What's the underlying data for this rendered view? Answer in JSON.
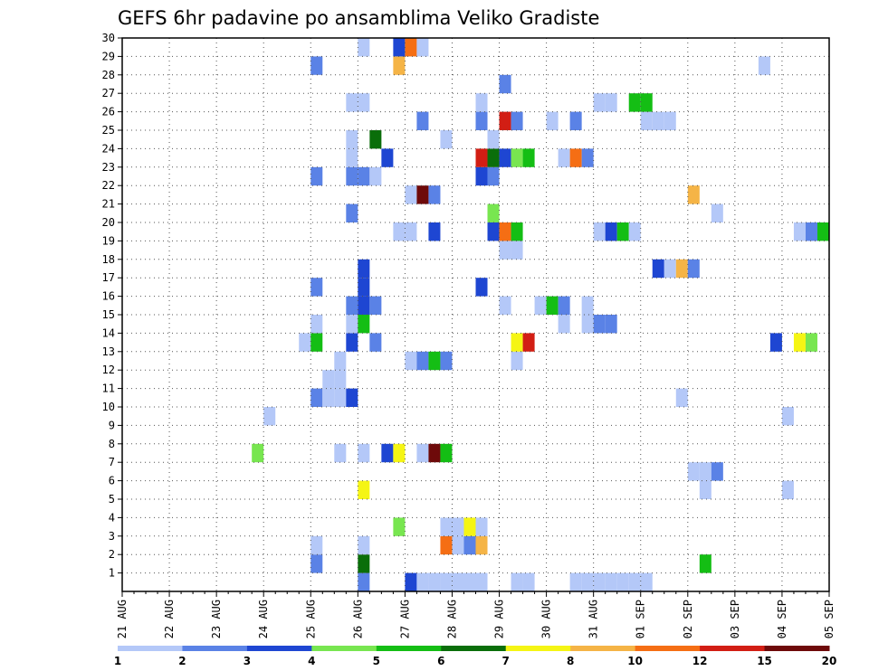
{
  "chart_data": {
    "type": "heatmap",
    "title": "GEFS 6hr padavine po ansamblima Veliko Gradiste",
    "xlabel": "",
    "ylabel": "",
    "x_tick_labels": [
      "21 AUG",
      "22 AUG",
      "23 AUG",
      "24 AUG",
      "25 AUG",
      "26 AUG",
      "27 AUG",
      "28 AUG",
      "29 AUG",
      "30 AUG",
      "31 AUG",
      "01 SEP",
      "02 SEP",
      "03 SEP",
      "04 SEP",
      "05 SEP"
    ],
    "y_tick_labels": [
      "1",
      "2",
      "3",
      "4",
      "5",
      "6",
      "7",
      "8",
      "9",
      "10",
      "11",
      "12",
      "13",
      "14",
      "15",
      "16",
      "17",
      "18",
      "19",
      "20",
      "21",
      "22",
      "23",
      "24",
      "25",
      "26",
      "27",
      "28",
      "29",
      "30"
    ],
    "ylim": [
      0,
      30
    ],
    "steps_per_day": 4,
    "grid": true,
    "colorbar": {
      "placement": "bottom",
      "labels": [
        "1",
        "2",
        "3",
        "4",
        "5",
        "6",
        "7",
        "8",
        "10",
        "12",
        "15",
        "20"
      ],
      "colors": [
        "#b4c8f8",
        "#5a82e6",
        "#1e46d2",
        "#78e650",
        "#14be14",
        "#0a6e0a",
        "#f5f514",
        "#f5b446",
        "#f56e14",
        "#d21e14",
        "#6e0a0a"
      ]
    },
    "cells_format": "[step, member, colorIndex]",
    "cells": [
      [
        20,
        0,
        1
      ],
      [
        24,
        0,
        2
      ],
      [
        25,
        0,
        0
      ],
      [
        26,
        0,
        0
      ],
      [
        27,
        0,
        0
      ],
      [
        28,
        0,
        0
      ],
      [
        29,
        0,
        0
      ],
      [
        30,
        0,
        0
      ],
      [
        33,
        0,
        0
      ],
      [
        34,
        0,
        0
      ],
      [
        38,
        0,
        0
      ],
      [
        39,
        0,
        0
      ],
      [
        40,
        0,
        0
      ],
      [
        41,
        0,
        0
      ],
      [
        42,
        0,
        0
      ],
      [
        43,
        0,
        0
      ],
      [
        44,
        0,
        0
      ],
      [
        16,
        1,
        1
      ],
      [
        20,
        1,
        5
      ],
      [
        49,
        1,
        4
      ],
      [
        16,
        2,
        0
      ],
      [
        20,
        2,
        0
      ],
      [
        27,
        2,
        8
      ],
      [
        28,
        2,
        0
      ],
      [
        29,
        2,
        1
      ],
      [
        30,
        2,
        7
      ],
      [
        23,
        3,
        3
      ],
      [
        27,
        3,
        0
      ],
      [
        28,
        3,
        0
      ],
      [
        29,
        3,
        6
      ],
      [
        30,
        3,
        0
      ],
      [
        20,
        5,
        6
      ],
      [
        49,
        5,
        0
      ],
      [
        56,
        5,
        0
      ],
      [
        48,
        6,
        0
      ],
      [
        49,
        6,
        0
      ],
      [
        50,
        6,
        1
      ],
      [
        11,
        7,
        3
      ],
      [
        18,
        7,
        0
      ],
      [
        20,
        7,
        0
      ],
      [
        22,
        7,
        2
      ],
      [
        23,
        7,
        6
      ],
      [
        25,
        7,
        0
      ],
      [
        26,
        7,
        10
      ],
      [
        27,
        7,
        4
      ],
      [
        12,
        9,
        0
      ],
      [
        56,
        9,
        0
      ],
      [
        16,
        10,
        1
      ],
      [
        17,
        10,
        0
      ],
      [
        18,
        10,
        0
      ],
      [
        19,
        10,
        2
      ],
      [
        47,
        10,
        0
      ],
      [
        17,
        11,
        0
      ],
      [
        18,
        11,
        0
      ],
      [
        18,
        12,
        0
      ],
      [
        24,
        12,
        0
      ],
      [
        25,
        12,
        1
      ],
      [
        26,
        12,
        4
      ],
      [
        27,
        12,
        1
      ],
      [
        33,
        12,
        0
      ],
      [
        15,
        13,
        0
      ],
      [
        16,
        13,
        4
      ],
      [
        19,
        13,
        2
      ],
      [
        21,
        13,
        1
      ],
      [
        33,
        13,
        6
      ],
      [
        34,
        13,
        9
      ],
      [
        55,
        13,
        2
      ],
      [
        57,
        13,
        6
      ],
      [
        58,
        13,
        3
      ],
      [
        16,
        14,
        0
      ],
      [
        19,
        14,
        0
      ],
      [
        20,
        14,
        4
      ],
      [
        37,
        14,
        0
      ],
      [
        39,
        14,
        0
      ],
      [
        40,
        14,
        1
      ],
      [
        41,
        14,
        1
      ],
      [
        19,
        15,
        1
      ],
      [
        20,
        15,
        2
      ],
      [
        21,
        15,
        1
      ],
      [
        32,
        15,
        0
      ],
      [
        35,
        15,
        0
      ],
      [
        36,
        15,
        4
      ],
      [
        37,
        15,
        1
      ],
      [
        39,
        15,
        0
      ],
      [
        16,
        16,
        1
      ],
      [
        20,
        16,
        2
      ],
      [
        30,
        16,
        2
      ],
      [
        20,
        17,
        2
      ],
      [
        45,
        17,
        2
      ],
      [
        46,
        17,
        0
      ],
      [
        47,
        17,
        7
      ],
      [
        48,
        17,
        1
      ],
      [
        32,
        18,
        0
      ],
      [
        33,
        18,
        0
      ],
      [
        23,
        19,
        0
      ],
      [
        24,
        19,
        0
      ],
      [
        26,
        19,
        2
      ],
      [
        31,
        19,
        2
      ],
      [
        32,
        19,
        8
      ],
      [
        33,
        19,
        4
      ],
      [
        40,
        19,
        0
      ],
      [
        41,
        19,
        2
      ],
      [
        42,
        19,
        4
      ],
      [
        43,
        19,
        0
      ],
      [
        57,
        19,
        0
      ],
      [
        58,
        19,
        1
      ],
      [
        59,
        19,
        4
      ],
      [
        19,
        20,
        1
      ],
      [
        31,
        20,
        3
      ],
      [
        50,
        20,
        0
      ],
      [
        24,
        21,
        0
      ],
      [
        25,
        21,
        10
      ],
      [
        26,
        21,
        1
      ],
      [
        48,
        21,
        7
      ],
      [
        16,
        22,
        1
      ],
      [
        19,
        22,
        1
      ],
      [
        20,
        22,
        1
      ],
      [
        21,
        22,
        0
      ],
      [
        30,
        22,
        2
      ],
      [
        31,
        22,
        1
      ],
      [
        19,
        23,
        0
      ],
      [
        22,
        23,
        2
      ],
      [
        30,
        23,
        9
      ],
      [
        31,
        23,
        5
      ],
      [
        32,
        23,
        2
      ],
      [
        33,
        23,
        3
      ],
      [
        34,
        23,
        4
      ],
      [
        37,
        23,
        0
      ],
      [
        38,
        23,
        8
      ],
      [
        39,
        23,
        1
      ],
      [
        19,
        24,
        0
      ],
      [
        21,
        24,
        5
      ],
      [
        27,
        24,
        0
      ],
      [
        31,
        24,
        0
      ],
      [
        25,
        25,
        1
      ],
      [
        30,
        25,
        1
      ],
      [
        32,
        25,
        9
      ],
      [
        33,
        25,
        1
      ],
      [
        36,
        25,
        0
      ],
      [
        38,
        25,
        1
      ],
      [
        44,
        25,
        0
      ],
      [
        45,
        25,
        0
      ],
      [
        46,
        25,
        0
      ],
      [
        19,
        26,
        0
      ],
      [
        20,
        26,
        0
      ],
      [
        30,
        26,
        0
      ],
      [
        40,
        26,
        0
      ],
      [
        41,
        26,
        0
      ],
      [
        43,
        26,
        4
      ],
      [
        44,
        26,
        4
      ],
      [
        32,
        27,
        1
      ],
      [
        16,
        28,
        1
      ],
      [
        23,
        28,
        7
      ],
      [
        54,
        28,
        0
      ],
      [
        20,
        29,
        0
      ],
      [
        23,
        29,
        2
      ],
      [
        24,
        29,
        8
      ],
      [
        25,
        29,
        0
      ]
    ]
  }
}
